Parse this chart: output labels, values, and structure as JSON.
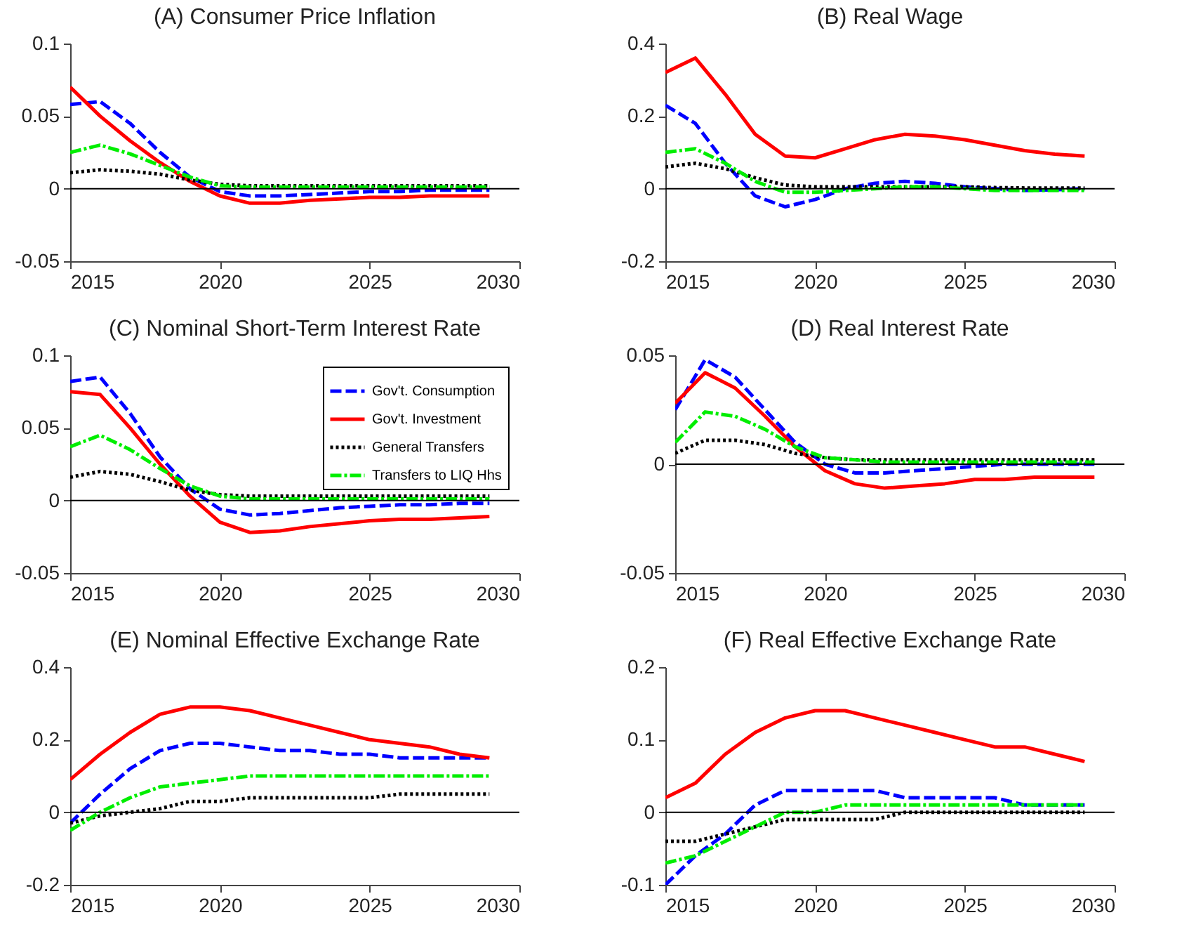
{
  "chart_data": [
    {
      "type": "line",
      "title": "(A) Consumer Price Inflation",
      "x": [
        2015,
        2016,
        2017,
        2018,
        2019,
        2020,
        2021,
        2022,
        2023,
        2024,
        2025,
        2026,
        2027,
        2028,
        2029
      ],
      "xlim": [
        2015,
        2030
      ],
      "xticks": [
        2015,
        2020,
        2025,
        2030
      ],
      "ylim": [
        -0.05,
        0.1
      ],
      "yticks": [
        -0.05,
        0,
        0.05,
        0.1
      ],
      "grid": false,
      "legend": false,
      "ref_lines": [
        {
          "axis": "y",
          "value": 0,
          "color": "#000000"
        }
      ],
      "series": [
        {
          "color": "#0000ff",
          "line_style": "dashed",
          "values": [
            0.058,
            0.06,
            0.045,
            0.025,
            0.008,
            -0.002,
            -0.005,
            -0.005,
            -0.004,
            -0.003,
            -0.002,
            -0.002,
            -0.001,
            -0.001,
            -0.001
          ]
        },
        {
          "color": "#ff0000",
          "line_style": "solid",
          "values": [
            0.07,
            0.05,
            0.033,
            0.018,
            0.005,
            -0.005,
            -0.01,
            -0.01,
            -0.008,
            -0.007,
            -0.006,
            -0.006,
            -0.005,
            -0.005,
            -0.005
          ]
        },
        {
          "color": "#000000",
          "line_style": "dotted",
          "values": [
            0.011,
            0.013,
            0.012,
            0.01,
            0.006,
            0.003,
            0.002,
            0.002,
            0.002,
            0.002,
            0.002,
            0.002,
            0.002,
            0.002,
            0.002
          ]
        },
        {
          "color": "#00ee00",
          "line_style": "dashdot",
          "values": [
            0.025,
            0.03,
            0.024,
            0.016,
            0.008,
            0.002,
            0.001,
            0.001,
            0.001,
            0.001,
            0.001,
            0.001,
            0.001,
            0.001,
            0.001
          ]
        }
      ]
    },
    {
      "type": "line",
      "title": "(B) Real Wage",
      "x": [
        2015,
        2016,
        2017,
        2018,
        2019,
        2020,
        2021,
        2022,
        2023,
        2024,
        2025,
        2026,
        2027,
        2028,
        2029
      ],
      "xlim": [
        2015,
        2030
      ],
      "xticks": [
        2015,
        2020,
        2025,
        2030
      ],
      "ylim": [
        -0.2,
        0.4
      ],
      "yticks": [
        -0.2,
        0,
        0.2,
        0.4
      ],
      "grid": false,
      "legend": false,
      "ref_lines": [
        {
          "axis": "y",
          "value": 0,
          "color": "#000000"
        }
      ],
      "series": [
        {
          "color": "#0000ff",
          "line_style": "dashed",
          "values": [
            0.23,
            0.18,
            0.07,
            -0.02,
            -0.05,
            -0.03,
            0,
            0.015,
            0.02,
            0.015,
            0.005,
            0,
            -0.005,
            -0.003,
            0
          ]
        },
        {
          "color": "#ff0000",
          "line_style": "solid",
          "values": [
            0.32,
            0.36,
            0.26,
            0.15,
            0.09,
            0.085,
            0.11,
            0.135,
            0.15,
            0.145,
            0.135,
            0.12,
            0.105,
            0.095,
            0.09
          ]
        },
        {
          "color": "#000000",
          "line_style": "dotted",
          "values": [
            0.06,
            0.07,
            0.055,
            0.03,
            0.01,
            0.005,
            0.005,
            0.005,
            0.005,
            0.005,
            0.005,
            0.003,
            0.002,
            0.002,
            0.002
          ]
        },
        {
          "color": "#00ee00",
          "line_style": "dashdot",
          "values": [
            0.1,
            0.11,
            0.07,
            0.02,
            -0.01,
            -0.01,
            -0.005,
            0,
            0.005,
            0.005,
            0,
            -0.005,
            -0.005,
            -0.005,
            -0.005
          ]
        }
      ]
    },
    {
      "type": "line",
      "title": "(C) Nominal Short-Term Interest Rate",
      "x": [
        2015,
        2016,
        2017,
        2018,
        2019,
        2020,
        2021,
        2022,
        2023,
        2024,
        2025,
        2026,
        2027,
        2028,
        2029
      ],
      "xlim": [
        2015,
        2030
      ],
      "xticks": [
        2015,
        2020,
        2025,
        2030
      ],
      "ylim": [
        -0.05,
        0.1
      ],
      "yticks": [
        -0.05,
        0,
        0.05,
        0.1
      ],
      "grid": false,
      "legend": "top right",
      "ref_lines": [
        {
          "axis": "y",
          "value": 0,
          "color": "#000000"
        }
      ],
      "series": [
        {
          "name": "Gov't. Consumption",
          "color": "#0000ff",
          "line_style": "dashed",
          "values": [
            0.082,
            0.085,
            0.06,
            0.03,
            0.008,
            -0.006,
            -0.01,
            -0.009,
            -0.007,
            -0.005,
            -0.004,
            -0.003,
            -0.003,
            -0.002,
            -0.002
          ]
        },
        {
          "name": "Gov't. Investment",
          "color": "#ff0000",
          "line_style": "solid",
          "values": [
            0.075,
            0.073,
            0.05,
            0.025,
            0.003,
            -0.015,
            -0.022,
            -0.021,
            -0.018,
            -0.016,
            -0.014,
            -0.013,
            -0.013,
            -0.012,
            -0.011
          ]
        },
        {
          "name": "General Transfers",
          "color": "#000000",
          "line_style": "dotted",
          "values": [
            0.016,
            0.02,
            0.018,
            0.013,
            0.007,
            0.004,
            0.003,
            0.003,
            0.003,
            0.003,
            0.003,
            0.003,
            0.003,
            0.003,
            0.003
          ]
        },
        {
          "name": "Transfers to LIQ Hhs",
          "color": "#00ee00",
          "line_style": "dashdot",
          "values": [
            0.037,
            0.045,
            0.035,
            0.022,
            0.01,
            0.003,
            0.001,
            0.001,
            0.001,
            0.001,
            0.001,
            0.001,
            0.001,
            0.001,
            0.001
          ]
        }
      ]
    },
    {
      "type": "line",
      "title": "(D) Real Interest Rate",
      "x": [
        2015,
        2016,
        2017,
        2018,
        2019,
        2020,
        2021,
        2022,
        2023,
        2024,
        2025,
        2026,
        2027,
        2028,
        2029
      ],
      "xlim": [
        2015,
        2030
      ],
      "xticks": [
        2015,
        2020,
        2025,
        2030
      ],
      "ylim": [
        -0.05,
        0.05
      ],
      "yticks": [
        -0.05,
        0,
        0.05
      ],
      "grid": false,
      "legend": false,
      "ref_lines": [
        {
          "axis": "y",
          "value": 0,
          "color": "#000000"
        }
      ],
      "series": [
        {
          "color": "#0000ff",
          "line_style": "dashed",
          "values": [
            0.025,
            0.048,
            0.04,
            0.025,
            0.01,
            0,
            -0.004,
            -0.004,
            -0.003,
            -0.002,
            -0.001,
            0,
            0,
            0,
            0
          ]
        },
        {
          "color": "#ff0000",
          "line_style": "solid",
          "values": [
            0.028,
            0.042,
            0.035,
            0.022,
            0.008,
            -0.003,
            -0.009,
            -0.011,
            -0.01,
            -0.009,
            -0.007,
            -0.007,
            -0.006,
            -0.006,
            -0.006
          ]
        },
        {
          "color": "#000000",
          "line_style": "dotted",
          "values": [
            0.005,
            0.011,
            0.011,
            0.009,
            0.005,
            0.003,
            0.002,
            0.002,
            0.002,
            0.002,
            0.002,
            0.002,
            0.002,
            0.002,
            0.002
          ]
        },
        {
          "color": "#00ee00",
          "line_style": "dashdot",
          "values": [
            0.01,
            0.024,
            0.022,
            0.016,
            0.008,
            0.003,
            0.002,
            0.001,
            0.001,
            0.001,
            0.001,
            0.001,
            0.001,
            0.001,
            0.001
          ]
        }
      ]
    },
    {
      "type": "line",
      "title": "(E) Nominal Effective Exchange Rate",
      "x": [
        2015,
        2016,
        2017,
        2018,
        2019,
        2020,
        2021,
        2022,
        2023,
        2024,
        2025,
        2026,
        2027,
        2028,
        2029
      ],
      "xlim": [
        2015,
        2030
      ],
      "xticks": [
        2015,
        2020,
        2025,
        2030
      ],
      "ylim": [
        -0.2,
        0.4
      ],
      "yticks": [
        -0.2,
        0,
        0.2,
        0.4
      ],
      "grid": false,
      "legend": false,
      "ref_lines": [
        {
          "axis": "y",
          "value": 0,
          "color": "#000000"
        }
      ],
      "series": [
        {
          "color": "#0000ff",
          "line_style": "dashed",
          "values": [
            -0.03,
            0.05,
            0.12,
            0.17,
            0.19,
            0.19,
            0.18,
            0.17,
            0.17,
            0.16,
            0.16,
            0.15,
            0.15,
            0.15,
            0.15
          ]
        },
        {
          "color": "#ff0000",
          "line_style": "solid",
          "values": [
            0.09,
            0.16,
            0.22,
            0.27,
            0.29,
            0.29,
            0.28,
            0.26,
            0.24,
            0.22,
            0.2,
            0.19,
            0.18,
            0.16,
            0.15
          ]
        },
        {
          "color": "#000000",
          "line_style": "dotted",
          "values": [
            -0.03,
            -0.01,
            0,
            0.01,
            0.03,
            0.03,
            0.04,
            0.04,
            0.04,
            0.04,
            0.04,
            0.05,
            0.05,
            0.05,
            0.05
          ]
        },
        {
          "color": "#00ee00",
          "line_style": "dashdot",
          "values": [
            -0.05,
            0,
            0.04,
            0.07,
            0.08,
            0.09,
            0.1,
            0.1,
            0.1,
            0.1,
            0.1,
            0.1,
            0.1,
            0.1,
            0.1
          ]
        }
      ]
    },
    {
      "type": "line",
      "title": "(F) Real Effective Exchange Rate",
      "x": [
        2015,
        2016,
        2017,
        2018,
        2019,
        2020,
        2021,
        2022,
        2023,
        2024,
        2025,
        2026,
        2027,
        2028,
        2029
      ],
      "xlim": [
        2015,
        2030
      ],
      "xticks": [
        2015,
        2020,
        2025,
        2030
      ],
      "ylim": [
        -0.1,
        0.2
      ],
      "yticks": [
        -0.1,
        0,
        0.1,
        0.2
      ],
      "grid": false,
      "legend": false,
      "ref_lines": [
        {
          "axis": "y",
          "value": 0,
          "color": "#000000"
        }
      ],
      "series": [
        {
          "color": "#0000ff",
          "line_style": "dashed",
          "values": [
            -0.1,
            -0.06,
            -0.03,
            0.01,
            0.03,
            0.03,
            0.03,
            0.03,
            0.02,
            0.02,
            0.02,
            0.02,
            0.01,
            0.01,
            0.01
          ]
        },
        {
          "color": "#ff0000",
          "line_style": "solid",
          "values": [
            0.02,
            0.04,
            0.08,
            0.11,
            0.13,
            0.14,
            0.14,
            0.13,
            0.12,
            0.11,
            0.1,
            0.09,
            0.09,
            0.08,
            0.07
          ]
        },
        {
          "color": "#000000",
          "line_style": "dotted",
          "values": [
            -0.04,
            -0.04,
            -0.03,
            -0.02,
            -0.01,
            -0.01,
            -0.01,
            -0.01,
            0,
            0,
            0,
            0,
            0,
            0,
            0
          ]
        },
        {
          "color": "#00ee00",
          "line_style": "dashdot",
          "values": [
            -0.07,
            -0.06,
            -0.04,
            -0.02,
            0,
            0,
            0.01,
            0.01,
            0.01,
            0.01,
            0.01,
            0.01,
            0.01,
            0.01,
            0.01
          ]
        }
      ]
    }
  ]
}
